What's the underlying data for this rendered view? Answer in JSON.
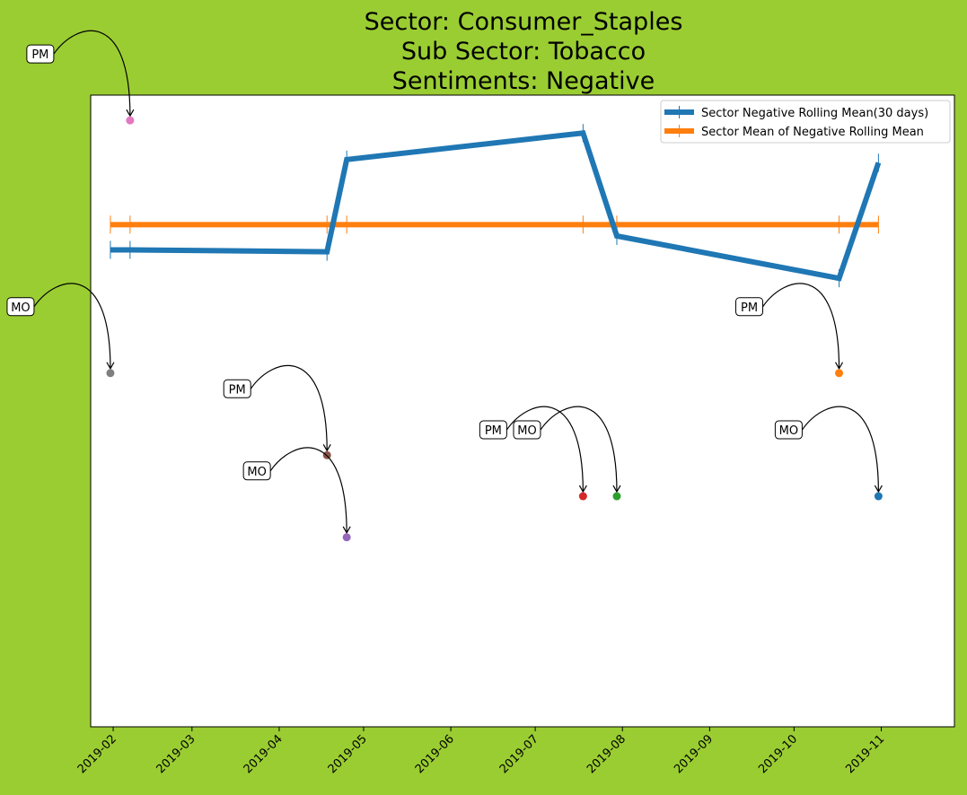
{
  "chart_data": {
    "type": "line",
    "title_lines": [
      "Sector:  Consumer_Staples",
      "Sub Sector:  Tobacco",
      "Sentiments:  Negative"
    ],
    "xlabel": "",
    "ylabel": "",
    "x_ticks": [
      "2019-02",
      "2019-03",
      "2019-04",
      "2019-05",
      "2019-06",
      "2019-07",
      "2019-08",
      "2019-09",
      "2019-10",
      "2019-11"
    ],
    "x_range": [
      "2019-01-24",
      "2019-11-27"
    ],
    "y_range": [
      0,
      1
    ],
    "grid": false,
    "legend_position": "upper right",
    "y_ticks_shown": false,
    "series": [
      {
        "name": "Sector Negative Rolling Mean(30 days)",
        "color": "#1f77b4",
        "points": [
          {
            "x": "2019-01-31",
            "y": 0.755
          },
          {
            "x": "2019-02-07",
            "y": 0.755
          },
          {
            "x": "2019-04-18",
            "y": 0.752
          },
          {
            "x": "2019-04-25",
            "y": 0.898
          },
          {
            "x": "2019-07-18",
            "y": 0.94
          },
          {
            "x": "2019-07-30",
            "y": 0.777
          },
          {
            "x": "2019-10-17",
            "y": 0.71
          },
          {
            "x": "2019-10-31",
            "y": 0.893
          }
        ]
      },
      {
        "name": "Sector Mean of Negative Rolling Mean",
        "color": "#ff7f0e",
        "points": [
          {
            "x": "2019-01-31",
            "y": 0.795
          },
          {
            "x": "2019-02-07",
            "y": 0.795
          },
          {
            "x": "2019-04-18",
            "y": 0.795
          },
          {
            "x": "2019-04-25",
            "y": 0.795
          },
          {
            "x": "2019-07-18",
            "y": 0.795
          },
          {
            "x": "2019-07-30",
            "y": 0.795
          },
          {
            "x": "2019-10-17",
            "y": 0.795
          },
          {
            "x": "2019-10-31",
            "y": 0.795
          }
        ]
      }
    ],
    "annotated_points": [
      {
        "label": "PM",
        "x": "2019-02-07",
        "y": 0.96,
        "color": "#e377c2"
      },
      {
        "label": "MO",
        "x": "2019-01-31",
        "y": 0.56,
        "color": "#7f7f7f"
      },
      {
        "label": "PM",
        "x": "2019-04-18",
        "y": 0.43,
        "color": "#8c564b"
      },
      {
        "label": "MO",
        "x": "2019-04-25",
        "y": 0.3,
        "color": "#9467bd"
      },
      {
        "label": "PM",
        "x": "2019-07-18",
        "y": 0.365,
        "color": "#d62728"
      },
      {
        "label": "MO",
        "x": "2019-07-30",
        "y": 0.365,
        "color": "#2ca02c"
      },
      {
        "label": "PM",
        "x": "2019-10-17",
        "y": 0.56,
        "color": "#ff7f0e"
      },
      {
        "label": "MO",
        "x": "2019-10-31",
        "y": 0.365,
        "color": "#1f77b4"
      }
    ]
  }
}
